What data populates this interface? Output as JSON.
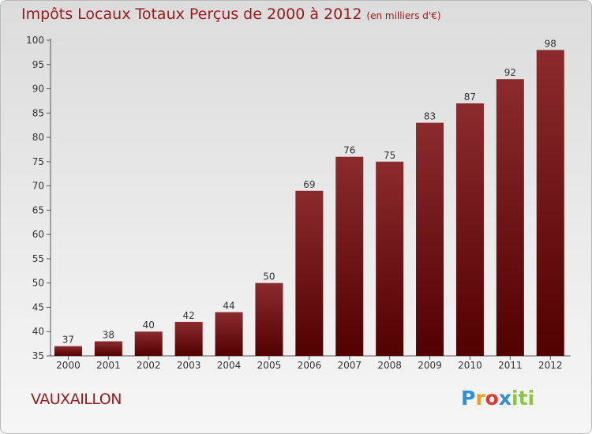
{
  "header": {
    "title": "Impôts Locaux Totaux Perçus de 2000 à 2012",
    "unit_note": "(en milliers d'€)"
  },
  "footer": {
    "town": "VAUXAILLON",
    "logo_text": "Proxiti"
  },
  "colors": {
    "bar_top": "#8b2b2e",
    "bar_bottom": "#520000",
    "title": "#9a1b1b"
  },
  "chart_data": {
    "type": "bar",
    "title": "Impôts Locaux Totaux Perçus de 2000 à 2012",
    "subtitle": "(en milliers d'€)",
    "xlabel": "",
    "ylabel": "",
    "categories": [
      "2000",
      "2001",
      "2002",
      "2003",
      "2004",
      "2005",
      "2006",
      "2007",
      "2008",
      "2009",
      "2010",
      "2011",
      "2012"
    ],
    "values": [
      37,
      38,
      40,
      42,
      44,
      50,
      69,
      76,
      75,
      83,
      87,
      92,
      98
    ],
    "ylim": [
      35,
      100
    ],
    "yticks": [
      35,
      40,
      45,
      50,
      55,
      60,
      65,
      70,
      75,
      80,
      85,
      90,
      95,
      100
    ],
    "grid": false,
    "legend": "none"
  }
}
